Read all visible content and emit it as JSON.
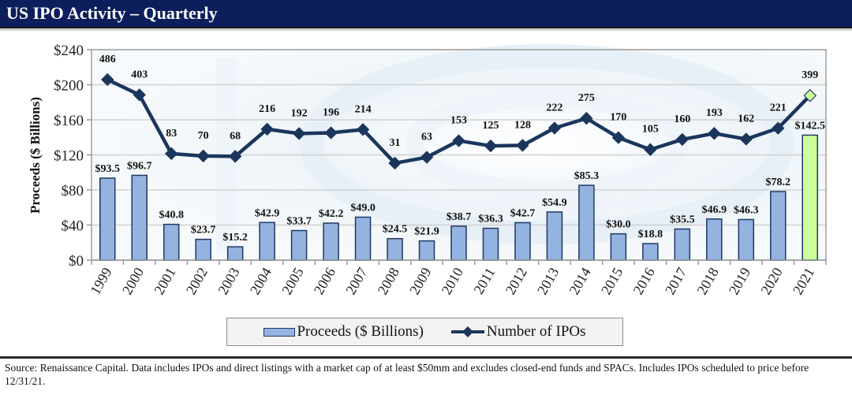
{
  "header": {
    "title": "US IPO Activity – Quarterly"
  },
  "colors": {
    "title_bar": "#0c1f5c",
    "bar_fill": "#95b3e0",
    "bar_stroke": "#1f3864",
    "highlight_fill": "#ccff99",
    "line": "#1b365d",
    "grid": "#d0d0d0"
  },
  "legend": {
    "proceeds_label": "Proceeds ($ Billions)",
    "ipos_label": "Number of IPOs"
  },
  "footnote": "Source: Renaissance Capital. Data includes IPOs and direct listings with a market cap of at least $50mm and excludes closed-end funds and SPACs. Includes IPOs scheduled to price before 12/31/21.",
  "chart_data": {
    "type": "bar",
    "title": "US IPO Activity – Quarterly",
    "xlabel": "",
    "ylabel": "Proceeds ($ Billions)",
    "ylim": [
      0,
      240
    ],
    "yticks": [
      0,
      40,
      80,
      120,
      160,
      200,
      240
    ],
    "ytick_labels": [
      "$0",
      "$40",
      "$80",
      "$120",
      "$160",
      "$200",
      "$240"
    ],
    "grid": true,
    "legend_position": "bottom",
    "categories": [
      "1999",
      "2000",
      "2001",
      "2002",
      "2003",
      "2004",
      "2005",
      "2006",
      "2007",
      "2008",
      "2009",
      "2010",
      "2011",
      "2012",
      "2013",
      "2014",
      "2015",
      "2016",
      "2017",
      "2018",
      "2019",
      "2020",
      "2021"
    ],
    "series": [
      {
        "name": "Proceeds ($ Billions)",
        "type": "bar",
        "axis": "primary",
        "values": [
          93.5,
          96.7,
          40.8,
          23.7,
          15.2,
          42.9,
          33.7,
          42.2,
          49.0,
          24.5,
          21.9,
          38.7,
          36.3,
          42.7,
          54.9,
          85.3,
          30.0,
          18.8,
          35.5,
          46.9,
          46.3,
          78.2,
          142.5
        ],
        "labels": [
          "$93.5",
          "$96.7",
          "$40.8",
          "$23.7",
          "$15.2",
          "$42.9",
          "$33.7",
          "$42.2",
          "$49.0",
          "$24.5",
          "$21.9",
          "$38.7",
          "$36.3",
          "$42.7",
          "$54.9",
          "$85.3",
          "$30.0",
          "$18.8",
          "$35.5",
          "$46.9",
          "$46.3",
          "$78.2",
          "$142.5"
        ],
        "highlight_index": 22
      },
      {
        "name": "Number of IPOs",
        "type": "line",
        "axis": "secondary-hidden",
        "secondary_ylim": [
          -497,
          649
        ],
        "values": [
          486,
          403,
          83,
          70,
          68,
          216,
          192,
          196,
          214,
          31,
          63,
          153,
          125,
          128,
          222,
          275,
          170,
          105,
          160,
          193,
          162,
          221,
          399
        ],
        "highlight_index": 22
      }
    ]
  }
}
